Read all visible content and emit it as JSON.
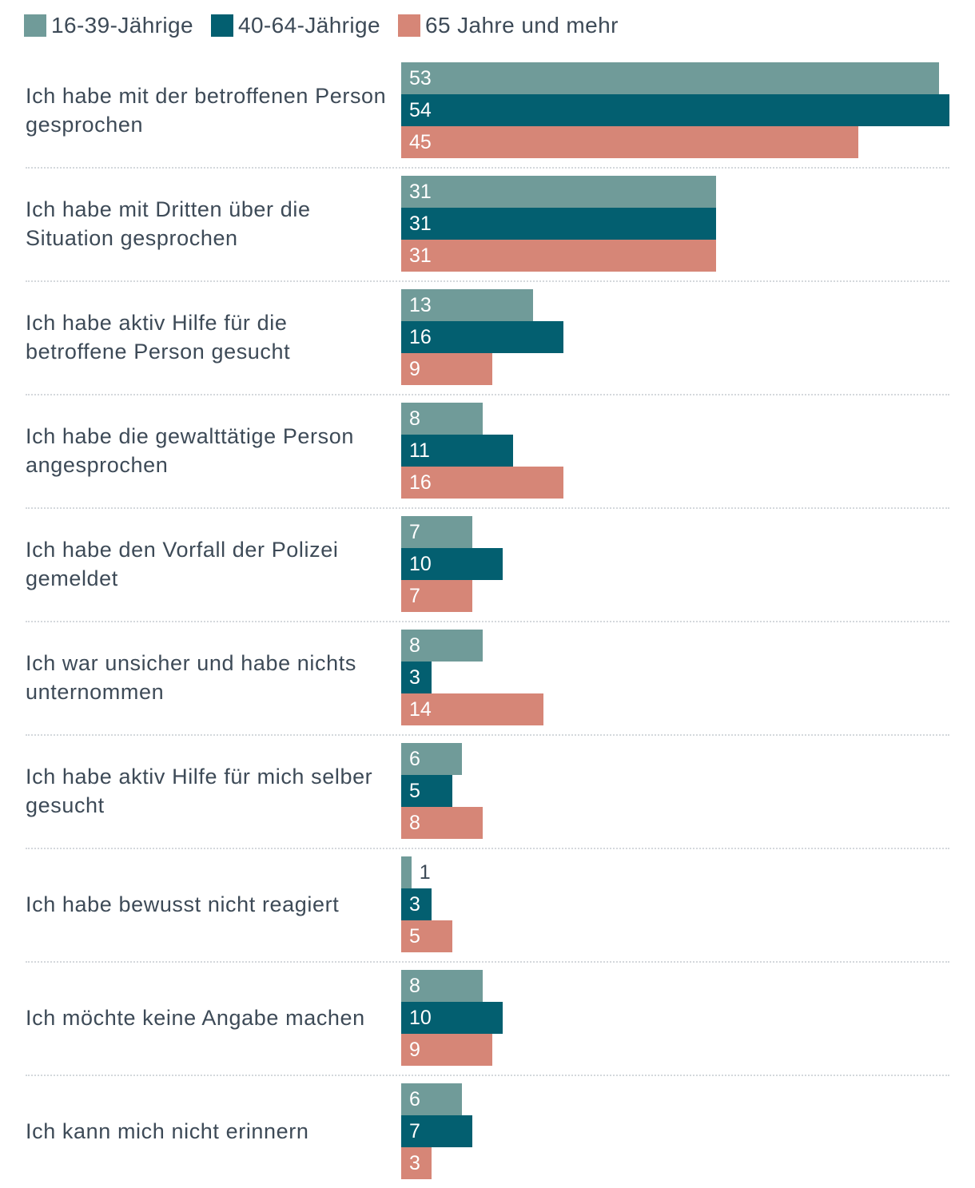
{
  "chart_data": {
    "type": "bar",
    "orientation": "horizontal",
    "categories": [
      "Ich habe mit der betroffenen Person gesprochen",
      "Ich habe mit Dritten über die Situation gesprochen",
      "Ich habe aktiv Hilfe für die betroffene Person gesucht",
      "Ich habe die gewalttätige Person angesprochen",
      "Ich habe den Vorfall der Polizei gemeldet",
      "Ich war unsicher und habe nichts unternommen",
      "Ich habe aktiv Hilfe für mich selber gesucht",
      "Ich habe bewusst nicht reagiert",
      "Ich möchte keine Angabe machen",
      "Ich kann mich nicht erinnern"
    ],
    "series": [
      {
        "name": "16-39-Jährige",
        "color": "#709b99",
        "values": [
          53,
          31,
          13,
          8,
          7,
          8,
          6,
          1,
          8,
          6
        ]
      },
      {
        "name": "40-64-Jährige",
        "color": "#035f70",
        "values": [
          54,
          31,
          16,
          11,
          10,
          3,
          5,
          3,
          10,
          7
        ]
      },
      {
        "name": "65 Jahre und mehr",
        "color": "#d68677",
        "values": [
          45,
          31,
          9,
          16,
          7,
          14,
          8,
          5,
          9,
          3
        ]
      }
    ]
  }
}
